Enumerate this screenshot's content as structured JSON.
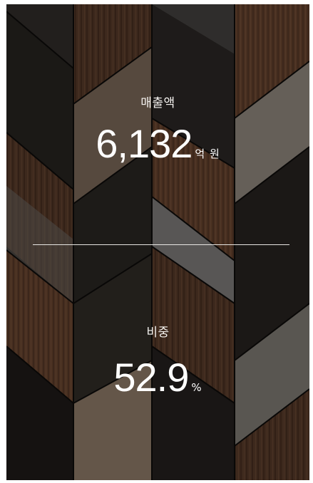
{
  "sales": {
    "label": "매출액",
    "value": "6,132",
    "unit": "억 원"
  },
  "share": {
    "label": "비중",
    "value": "52.9",
    "unit": "%"
  }
}
